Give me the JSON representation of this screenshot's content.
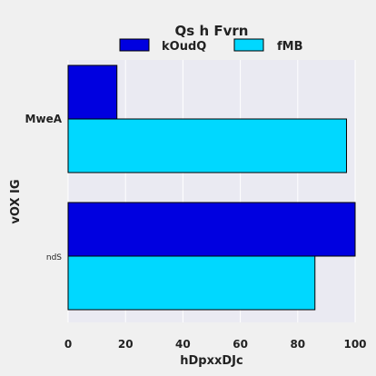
{
  "chart_data": {
    "type": "bar",
    "orientation": "horizontal",
    "title": "Qs h  Fvrn",
    "xlabel": "hDpxxDJc",
    "ylabel": "vOX IG",
    "categories": [
      "MweA",
      "ndS"
    ],
    "series": [
      {
        "name": "kOudQ",
        "values": [
          17,
          100
        ],
        "color": "#0000e0"
      },
      {
        "name": "fMB",
        "values": [
          97,
          86
        ],
        "color": "#00d8ff"
      }
    ],
    "xlim": [
      0,
      100
    ],
    "xticks": [
      0,
      20,
      40,
      60,
      80,
      100
    ],
    "grid": true,
    "legend_position": "top"
  },
  "colors": {
    "plot_background": "#eaeaf2",
    "page_background": "#f0f0f0",
    "grid": "#ffffff",
    "bar_edge": "#000000"
  }
}
